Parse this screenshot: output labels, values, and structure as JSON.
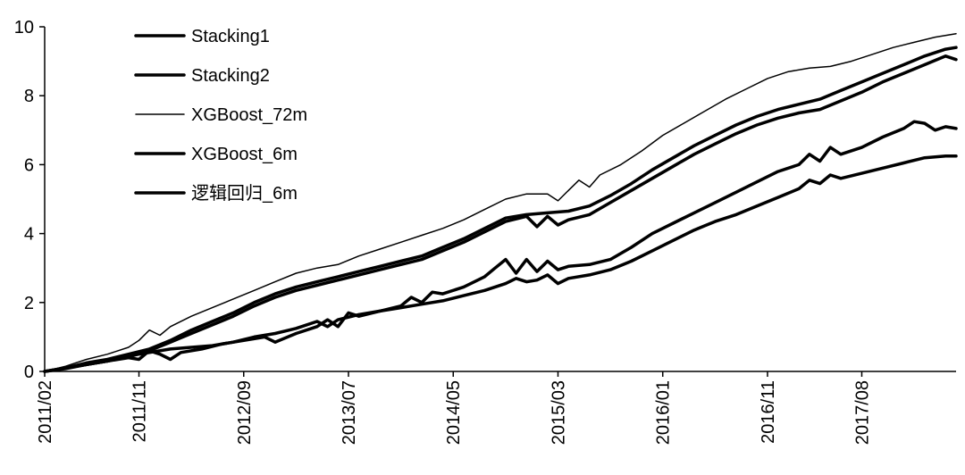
{
  "chart_data": {
    "type": "line",
    "title": "",
    "xlabel": "",
    "ylabel": "",
    "ylim": [
      0,
      10
    ],
    "yticks": [
      0,
      2,
      4,
      6,
      8,
      10
    ],
    "x_tick_labels": [
      "2011/02",
      "2011/11",
      "2012/09",
      "2013/07",
      "2014/05",
      "2015/03",
      "2016/01",
      "2016/11",
      "2017/08"
    ],
    "x_tick_index": [
      0,
      9,
      19,
      29,
      39,
      49,
      59,
      69,
      78
    ],
    "x_range_index": [
      0,
      87
    ],
    "grid": false,
    "legend_position": "top-left",
    "series": [
      {
        "name": "Stacking1",
        "stroke_width": 3.5,
        "points": [
          [
            0,
            0
          ],
          [
            2,
            0.1
          ],
          [
            4,
            0.25
          ],
          [
            6,
            0.35
          ],
          [
            8,
            0.5
          ],
          [
            10,
            0.65
          ],
          [
            12,
            0.9
          ],
          [
            14,
            1.2
          ],
          [
            16,
            1.45
          ],
          [
            18,
            1.7
          ],
          [
            20,
            2.0
          ],
          [
            22,
            2.25
          ],
          [
            24,
            2.45
          ],
          [
            26,
            2.6
          ],
          [
            28,
            2.75
          ],
          [
            30,
            2.9
          ],
          [
            32,
            3.05
          ],
          [
            34,
            3.2
          ],
          [
            36,
            3.35
          ],
          [
            38,
            3.6
          ],
          [
            40,
            3.85
          ],
          [
            42,
            4.15
          ],
          [
            44,
            4.45
          ],
          [
            46,
            4.55
          ],
          [
            48,
            4.6
          ],
          [
            50,
            4.65
          ],
          [
            52,
            4.8
          ],
          [
            54,
            5.1
          ],
          [
            56,
            5.45
          ],
          [
            58,
            5.85
          ],
          [
            60,
            6.2
          ],
          [
            62,
            6.55
          ],
          [
            64,
            6.85
          ],
          [
            66,
            7.15
          ],
          [
            68,
            7.4
          ],
          [
            70,
            7.6
          ],
          [
            72,
            7.75
          ],
          [
            74,
            7.9
          ],
          [
            76,
            8.15
          ],
          [
            78,
            8.4
          ],
          [
            80,
            8.65
          ],
          [
            82,
            8.9
          ],
          [
            84,
            9.15
          ],
          [
            86,
            9.35
          ],
          [
            87,
            9.4
          ]
        ]
      },
      {
        "name": "Stacking2",
        "stroke_width": 3.5,
        "points": [
          [
            0,
            0
          ],
          [
            2,
            0.08
          ],
          [
            4,
            0.2
          ],
          [
            6,
            0.3
          ],
          [
            8,
            0.42
          ],
          [
            10,
            0.6
          ],
          [
            12,
            0.85
          ],
          [
            14,
            1.1
          ],
          [
            16,
            1.35
          ],
          [
            18,
            1.6
          ],
          [
            20,
            1.9
          ],
          [
            22,
            2.15
          ],
          [
            24,
            2.35
          ],
          [
            26,
            2.5
          ],
          [
            28,
            2.65
          ],
          [
            30,
            2.8
          ],
          [
            32,
            2.95
          ],
          [
            34,
            3.1
          ],
          [
            36,
            3.25
          ],
          [
            38,
            3.5
          ],
          [
            40,
            3.75
          ],
          [
            42,
            4.05
          ],
          [
            44,
            4.35
          ],
          [
            46,
            4.5
          ],
          [
            47,
            4.2
          ],
          [
            48,
            4.5
          ],
          [
            49,
            4.25
          ],
          [
            50,
            4.4
          ],
          [
            52,
            4.55
          ],
          [
            54,
            4.9
          ],
          [
            56,
            5.25
          ],
          [
            58,
            5.6
          ],
          [
            60,
            5.95
          ],
          [
            62,
            6.3
          ],
          [
            64,
            6.6
          ],
          [
            66,
            6.9
          ],
          [
            68,
            7.15
          ],
          [
            70,
            7.35
          ],
          [
            72,
            7.5
          ],
          [
            74,
            7.6
          ],
          [
            76,
            7.85
          ],
          [
            78,
            8.1
          ],
          [
            80,
            8.4
          ],
          [
            82,
            8.65
          ],
          [
            84,
            8.9
          ],
          [
            86,
            9.15
          ],
          [
            87,
            9.05
          ]
        ]
      },
      {
        "name": "XGBoost_72m",
        "stroke_width": 1.5,
        "points": [
          [
            0,
            0
          ],
          [
            2,
            0.15
          ],
          [
            4,
            0.35
          ],
          [
            6,
            0.5
          ],
          [
            8,
            0.7
          ],
          [
            9,
            0.9
          ],
          [
            10,
            1.2
          ],
          [
            11,
            1.05
          ],
          [
            12,
            1.3
          ],
          [
            14,
            1.6
          ],
          [
            16,
            1.85
          ],
          [
            18,
            2.1
          ],
          [
            20,
            2.35
          ],
          [
            22,
            2.6
          ],
          [
            24,
            2.85
          ],
          [
            26,
            3.0
          ],
          [
            28,
            3.1
          ],
          [
            30,
            3.35
          ],
          [
            32,
            3.55
          ],
          [
            34,
            3.75
          ],
          [
            36,
            3.95
          ],
          [
            38,
            4.15
          ],
          [
            40,
            4.4
          ],
          [
            42,
            4.7
          ],
          [
            44,
            5.0
          ],
          [
            46,
            5.15
          ],
          [
            48,
            5.15
          ],
          [
            49,
            4.95
          ],
          [
            50,
            5.25
          ],
          [
            51,
            5.55
          ],
          [
            52,
            5.35
          ],
          [
            53,
            5.7
          ],
          [
            55,
            6.0
          ],
          [
            57,
            6.4
          ],
          [
            59,
            6.85
          ],
          [
            61,
            7.2
          ],
          [
            63,
            7.55
          ],
          [
            65,
            7.9
          ],
          [
            67,
            8.2
          ],
          [
            69,
            8.5
          ],
          [
            71,
            8.7
          ],
          [
            73,
            8.8
          ],
          [
            75,
            8.85
          ],
          [
            77,
            9.0
          ],
          [
            79,
            9.2
          ],
          [
            81,
            9.4
          ],
          [
            83,
            9.55
          ],
          [
            85,
            9.7
          ],
          [
            87,
            9.8
          ]
        ]
      },
      {
        "name": "XGBoost_6m",
        "stroke_width": 3.5,
        "points": [
          [
            0,
            0
          ],
          [
            2,
            0.1
          ],
          [
            4,
            0.2
          ],
          [
            6,
            0.3
          ],
          [
            8,
            0.4
          ],
          [
            9,
            0.35
          ],
          [
            10,
            0.6
          ],
          [
            11,
            0.5
          ],
          [
            12,
            0.35
          ],
          [
            13,
            0.55
          ],
          [
            15,
            0.65
          ],
          [
            17,
            0.8
          ],
          [
            19,
            0.9
          ],
          [
            21,
            1.0
          ],
          [
            22,
            0.85
          ],
          [
            24,
            1.1
          ],
          [
            26,
            1.3
          ],
          [
            27,
            1.5
          ],
          [
            28,
            1.3
          ],
          [
            29,
            1.7
          ],
          [
            30,
            1.6
          ],
          [
            32,
            1.75
          ],
          [
            34,
            1.9
          ],
          [
            35,
            2.15
          ],
          [
            36,
            2.0
          ],
          [
            37,
            2.3
          ],
          [
            38,
            2.25
          ],
          [
            40,
            2.45
          ],
          [
            42,
            2.75
          ],
          [
            43,
            3.0
          ],
          [
            44,
            3.25
          ],
          [
            45,
            2.85
          ],
          [
            46,
            3.25
          ],
          [
            47,
            2.9
          ],
          [
            48,
            3.2
          ],
          [
            49,
            2.95
          ],
          [
            50,
            3.05
          ],
          [
            52,
            3.1
          ],
          [
            54,
            3.25
          ],
          [
            56,
            3.6
          ],
          [
            58,
            4.0
          ],
          [
            60,
            4.3
          ],
          [
            62,
            4.6
          ],
          [
            64,
            4.9
          ],
          [
            66,
            5.2
          ],
          [
            68,
            5.5
          ],
          [
            70,
            5.8
          ],
          [
            72,
            6.0
          ],
          [
            73,
            6.3
          ],
          [
            74,
            6.1
          ],
          [
            75,
            6.5
          ],
          [
            76,
            6.3
          ],
          [
            78,
            6.5
          ],
          [
            80,
            6.8
          ],
          [
            82,
            7.05
          ],
          [
            83,
            7.25
          ],
          [
            84,
            7.2
          ],
          [
            85,
            7.0
          ],
          [
            86,
            7.1
          ],
          [
            87,
            7.05
          ]
        ]
      },
      {
        "name": "逻辑回归_6m",
        "stroke_width": 3.5,
        "points": [
          [
            0,
            0
          ],
          [
            2,
            0.1
          ],
          [
            4,
            0.2
          ],
          [
            6,
            0.3
          ],
          [
            8,
            0.45
          ],
          [
            10,
            0.55
          ],
          [
            12,
            0.65
          ],
          [
            14,
            0.7
          ],
          [
            16,
            0.75
          ],
          [
            18,
            0.85
          ],
          [
            20,
            1.0
          ],
          [
            22,
            1.1
          ],
          [
            24,
            1.25
          ],
          [
            26,
            1.45
          ],
          [
            27,
            1.3
          ],
          [
            28,
            1.5
          ],
          [
            30,
            1.65
          ],
          [
            32,
            1.75
          ],
          [
            34,
            1.85
          ],
          [
            36,
            1.95
          ],
          [
            38,
            2.05
          ],
          [
            40,
            2.2
          ],
          [
            42,
            2.35
          ],
          [
            44,
            2.55
          ],
          [
            45,
            2.7
          ],
          [
            46,
            2.6
          ],
          [
            47,
            2.65
          ],
          [
            48,
            2.8
          ],
          [
            49,
            2.55
          ],
          [
            50,
            2.7
          ],
          [
            52,
            2.8
          ],
          [
            54,
            2.95
          ],
          [
            56,
            3.2
          ],
          [
            58,
            3.5
          ],
          [
            60,
            3.8
          ],
          [
            62,
            4.1
          ],
          [
            64,
            4.35
          ],
          [
            66,
            4.55
          ],
          [
            68,
            4.8
          ],
          [
            70,
            5.05
          ],
          [
            72,
            5.3
          ],
          [
            73,
            5.55
          ],
          [
            74,
            5.45
          ],
          [
            75,
            5.7
          ],
          [
            76,
            5.6
          ],
          [
            78,
            5.75
          ],
          [
            80,
            5.9
          ],
          [
            82,
            6.05
          ],
          [
            84,
            6.2
          ],
          [
            86,
            6.25
          ],
          [
            87,
            6.25
          ]
        ]
      }
    ]
  }
}
